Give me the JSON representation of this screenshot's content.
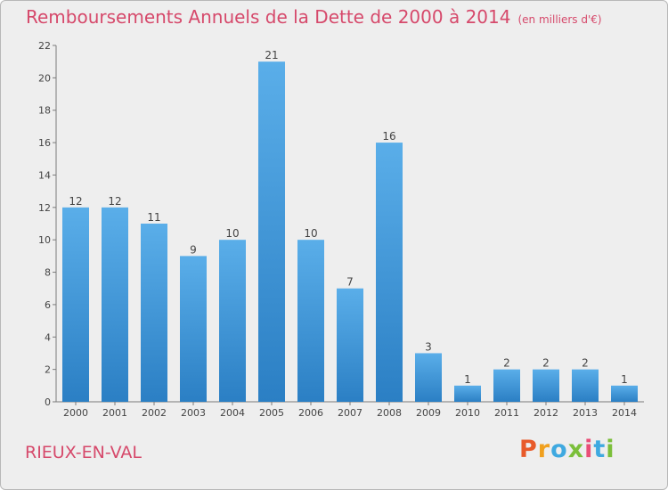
{
  "title": "Remboursements Annuels de la Dette de 2000 à 2014",
  "unit": "(en milliers d'€)",
  "commune": "RIEUX-EN-VAL",
  "logo": {
    "text": "Proxiti",
    "colors": [
      "#e85a2a",
      "#f0a01e",
      "#3fa9e0",
      "#7bbf3a",
      "#e94e77",
      "#3fa9e0",
      "#7bbf3a"
    ]
  },
  "colors": {
    "bar_top": "#5aaee9",
    "bar_bottom": "#2b7fc4",
    "text_accent": "#d6496b"
  },
  "chart_data": {
    "type": "bar",
    "categories": [
      "2000",
      "2001",
      "2002",
      "2003",
      "2004",
      "2005",
      "2006",
      "2007",
      "2008",
      "2009",
      "2010",
      "2011",
      "2012",
      "2013",
      "2014"
    ],
    "values": [
      12,
      12,
      11,
      9,
      10,
      21,
      10,
      7,
      16,
      3,
      1,
      2,
      2,
      2,
      1
    ],
    "ylim": [
      0,
      22
    ],
    "yticks": [
      0,
      2,
      4,
      6,
      8,
      10,
      12,
      14,
      16,
      18,
      20,
      22
    ],
    "grid": false,
    "legend": "none"
  }
}
